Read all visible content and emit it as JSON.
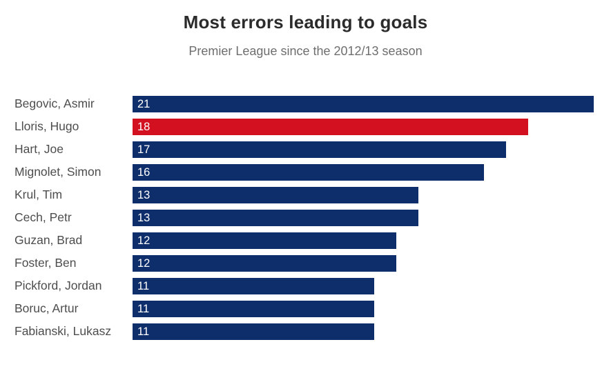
{
  "chart_data": {
    "type": "bar",
    "orientation": "horizontal",
    "title": "Most errors leading to goals",
    "subtitle": "Premier League since the 2012/13 season",
    "categories": [
      "Begovic, Asmir",
      "Lloris, Hugo",
      "Hart, Joe",
      "Mignolet, Simon",
      "Krul, Tim",
      "Cech, Petr",
      "Guzan, Brad",
      "Foster, Ben",
      "Pickford, Jordan",
      "Boruc, Artur",
      "Fabianski, Lukasz"
    ],
    "values": [
      21,
      18,
      17,
      16,
      13,
      13,
      12,
      12,
      11,
      11,
      11
    ],
    "value_labels_shown": true,
    "highlight_index": 1,
    "xlim": [
      0,
      21
    ],
    "grid": false,
    "legend": false,
    "colors": {
      "bar": "#0d2d6b",
      "highlight": "#d2101f",
      "title_text": "#2b2b2b",
      "subtitle_text": "#6e6e6e",
      "category_text": "#4d4d4d",
      "value_text": "#ffffff",
      "background": "#ffffff"
    }
  }
}
